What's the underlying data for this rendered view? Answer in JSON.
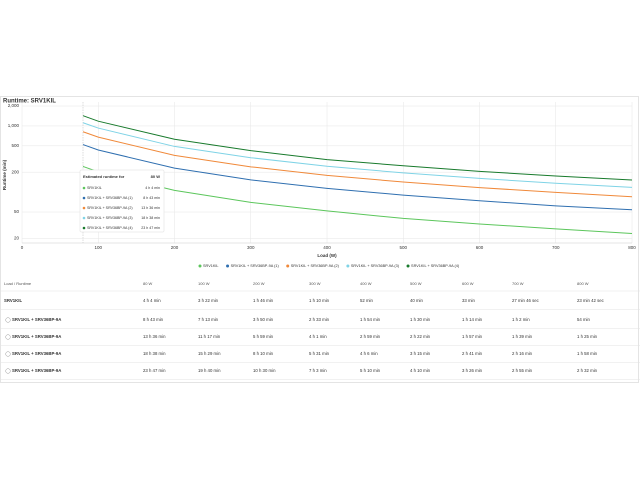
{
  "chart_data": {
    "type": "line",
    "title": "Runtime: SRV1KIL",
    "x_label": "Load (W)",
    "y_label": "Runtime (min)",
    "x": [
      80,
      100,
      200,
      300,
      400,
      500,
      600,
      700,
      800
    ],
    "xlim": [
      0,
      800
    ],
    "xticks": [
      0,
      100,
      200,
      300,
      400,
      500,
      600,
      700,
      800
    ],
    "ylim": [
      17,
      2300
    ],
    "log_y": true,
    "grid": true,
    "yticks": [
      20,
      50,
      200,
      500,
      {
        "value": 1000,
        "label": "1,000"
      },
      {
        "value": 2000,
        "label": "2,000"
      }
    ],
    "series": [
      {
        "name": "SRV1KIL",
        "color": "#5cc65c",
        "values": [
          244,
          202,
          106,
          70,
          52,
          40,
          33,
          27.8,
          23.7
        ]
      },
      {
        "name": "SRV1KIL + SRV36BP-9A (1)",
        "color": "#2f6fb0",
        "values": [
          523,
          433,
          230,
          153,
          114,
          90,
          74,
          62,
          54
        ]
      },
      {
        "name": "SRV1KIL + SRV36BP-9A (2)",
        "color": "#f0893a",
        "values": [
          816,
          677,
          359,
          241,
          179,
          142,
          117,
          99,
          85
        ]
      },
      {
        "name": "SRV1KIL + SRV36BP-9A (3)",
        "color": "#7fd3e6",
        "values": [
          1118,
          929,
          490,
          331,
          246,
          195,
          161,
          136,
          118
        ]
      },
      {
        "name": "SRV1KIL + SRV36BP-9A (4)",
        "color": "#187a2c",
        "values": [
          1427,
          1180,
          630,
          423,
          310,
          250,
          206,
          175,
          152
        ]
      }
    ]
  },
  "tooltip": {
    "title": "Estimated runtime for"
  },
  "table": {
    "header": [
      "Load / Runtime",
      "80 W",
      "100 W",
      "200 W",
      "300 W",
      "400 W",
      "500 W",
      "600 W",
      "700 W",
      "800 W"
    ],
    "rows": [
      [
        "SRV1KIL",
        "4 h 4 min",
        "3 h 22 min",
        "1 h 46 min",
        "1 h 10 min",
        "52 min",
        "40 min",
        "33 min",
        "27 min 46 sec",
        "23 min 42 sec"
      ],
      [
        "SRV1KIL + SRV36BP-9A",
        "8 h 43 min",
        "7 h 13 min",
        "3 h 50 min",
        "2 h 33 min",
        "1 h 54 min",
        "1 h 30 min",
        "1 h 14 min",
        "1 h 2 min",
        "54 min"
      ],
      [
        "SRV1KIL + SRV36BP-9A",
        "13 h 36 min",
        "11 h 17 min",
        "5 h 59 min",
        "4 h 1 min",
        "2 h 59 min",
        "2 h 22 min",
        "1 h 57 min",
        "1 h 39 min",
        "1 h 25 min"
      ],
      [
        "SRV1KIL + SRV36BP-9A",
        "18 h 38 min",
        "15 h 29 min",
        "8 h 10 min",
        "5 h 31 min",
        "4 h 6 min",
        "3 h 15 min",
        "2 h 41 min",
        "2 h 16 min",
        "1 h 58 min"
      ],
      [
        "SRV1KIL + SRV36BP-9A",
        "23 h 47 min",
        "19 h 40 min",
        "10 h 30 min",
        "7 h 3 min",
        "5 h 10 min",
        "4 h 10 min",
        "3 h 26 min",
        "2 h 55 min",
        "2 h 32 min"
      ]
    ]
  }
}
